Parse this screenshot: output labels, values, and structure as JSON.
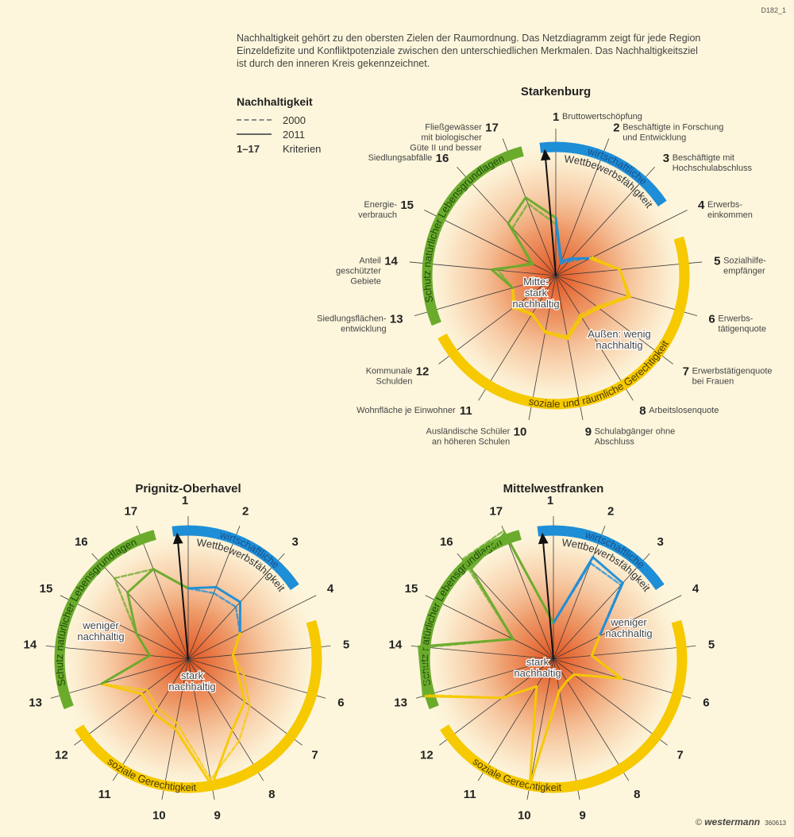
{
  "code": "D182_1",
  "intro": [
    "Nachhaltigkeit gehört zu den obersten Zielen der Raumordnung. Das Netzdiagramm zeigt für jede Region",
    "Einzeldefizite und Konfliktpotenziale zwischen den unterschiedlichen Merkmalen. Das Nachhaltigkeitsziel",
    "ist durch den inneren Kreis gekennzeichnet."
  ],
  "legend": {
    "title": "Nachhaltigkeit",
    "dashed": "2000",
    "solid": "2011",
    "range": "1–17",
    "range_label": "Kriterien"
  },
  "criteria": [
    {
      "num": "1",
      "lines": [
        "Bruttowertschöpfung"
      ]
    },
    {
      "num": "2",
      "lines": [
        "Beschäftigte in Forschung",
        "und Entwicklung"
      ]
    },
    {
      "num": "3",
      "lines": [
        "Beschäftigte mit",
        "Hochschulabschluss"
      ]
    },
    {
      "num": "4",
      "lines": [
        "Erwerbs-",
        "einkommen"
      ]
    },
    {
      "num": "5",
      "lines": [
        "Sozialhilfe-",
        "empfänger"
      ]
    },
    {
      "num": "6",
      "lines": [
        "Erwerbs-",
        "tätigenquote"
      ]
    },
    {
      "num": "7",
      "lines": [
        "Erwerbstätigenquote",
        "bei Frauen"
      ]
    },
    {
      "num": "8",
      "lines": [
        "Arbeitslosenquote"
      ]
    },
    {
      "num": "9",
      "lines": [
        "Schulabgänger ohne",
        "Abschluss"
      ]
    },
    {
      "num": "10",
      "lines": [
        "Ausländische Schüler",
        "an höheren Schulen"
      ]
    },
    {
      "num": "11",
      "lines": [
        "Wohnfläche je Einwohner"
      ]
    },
    {
      "num": "12",
      "lines": [
        "Kommunale",
        "Schulden"
      ]
    },
    {
      "num": "13",
      "lines": [
        "Siedlungsflächen-",
        "entwicklung"
      ]
    },
    {
      "num": "14",
      "lines": [
        "Anteil",
        "geschützter",
        "Gebiete"
      ]
    },
    {
      "num": "15",
      "lines": [
        "Energie-",
        "verbrauch"
      ]
    },
    {
      "num": "16",
      "lines": [
        "Siedlungsabfälle"
      ]
    },
    {
      "num": "17",
      "lines": [
        "Fließgewässer",
        "mit biologischer",
        "Güte II und besser"
      ]
    }
  ],
  "colors": {
    "economy": "#1e8ed6",
    "social": "#f6c900",
    "nature": "#6aab2c",
    "center": "#e0501c",
    "background": "#fdf6dc"
  },
  "chart_data": [
    {
      "type": "radar",
      "title": "Starkenburg",
      "categories": [
        "1",
        "2",
        "3",
        "4",
        "5",
        "6",
        "7",
        "8",
        "9",
        "10",
        "11",
        "12",
        "13",
        "14",
        "15",
        "16",
        "17"
      ],
      "range": [
        0,
        1
      ],
      "groups": {
        "economy": {
          "label": "wirtschaftliche",
          "label2": "Wettbewerbsfähigkeit",
          "axes": [
            1,
            2,
            3
          ]
        },
        "social": {
          "label": "soziale und räumliche Gerechtigkeit",
          "axes": [
            4,
            5,
            6,
            7,
            8,
            9,
            10,
            11,
            12
          ]
        },
        "nature": {
          "label": "Schutz natürlicher Lebensgrundlagen",
          "axes": [
            13,
            14,
            15,
            16,
            17
          ]
        }
      },
      "annotations": {
        "inner": [
          "Mitte:",
          "stark",
          "nachhaltig"
        ],
        "outer": [
          "Außen: wenig",
          "nachhaltig"
        ]
      },
      "series": [
        {
          "name": "2000",
          "style": "dashed",
          "values": [
            0.4,
            0.1,
            0.15,
            0.32,
            0.5,
            0.58,
            0.4,
            0.36,
            0.48,
            0.44,
            0.36,
            0.42,
            0.35,
            0.45,
            0.22,
            0.5,
            0.6
          ]
        },
        {
          "name": "2011",
          "style": "solid",
          "values": [
            0.45,
            0.12,
            0.18,
            0.3,
            0.5,
            0.6,
            0.42,
            0.38,
            0.5,
            0.45,
            0.35,
            0.4,
            0.35,
            0.5,
            0.2,
            0.55,
            0.65
          ]
        }
      ]
    },
    {
      "type": "radar",
      "title": "Prignitz-Oberhavel",
      "categories": [
        "1",
        "2",
        "3",
        "4",
        "5",
        "6",
        "7",
        "8",
        "9",
        "10",
        "11",
        "12",
        "13",
        "14",
        "15",
        "16",
        "17"
      ],
      "range": [
        0,
        1
      ],
      "groups": {
        "economy": {
          "label": "wirtschaftliche",
          "label2": "Wettbewerbsfähigkeit",
          "axes": [
            1,
            2,
            3
          ]
        },
        "social": {
          "label": "soziale Gerechtigkeit",
          "axes": [
            4,
            5,
            6,
            7,
            8,
            9,
            10,
            11,
            12
          ]
        },
        "nature": {
          "label": "Schutz natürlicher Lebensgrundlagen",
          "axes": [
            13,
            14,
            15,
            16,
            17
          ]
        }
      },
      "annotations": {
        "inner": [
          "stark",
          "nachhaltig"
        ],
        "outer": [
          "weniger",
          "nachhaltig"
        ]
      },
      "series": [
        {
          "name": "2000",
          "style": "dashed",
          "values": [
            0.55,
            0.55,
            0.55,
            0.45,
            0.35,
            0.45,
            0.6,
            0.75,
            0.95,
            0.5,
            0.45,
            0.4,
            0.7,
            0.3,
            0.45,
            0.85,
            0.75
          ]
        },
        {
          "name": "2011",
          "style": "solid",
          "values": [
            0.55,
            0.6,
            0.6,
            0.45,
            0.35,
            0.4,
            0.55,
            0.65,
            1.0,
            0.55,
            0.5,
            0.45,
            0.7,
            0.3,
            0.45,
            0.7,
            0.75
          ]
        }
      ]
    },
    {
      "type": "radar",
      "title": "Mittelwestfranken",
      "categories": [
        "1",
        "2",
        "3",
        "4",
        "5",
        "6",
        "7",
        "8",
        "9",
        "10",
        "11",
        "12",
        "13",
        "14",
        "15",
        "16",
        "17"
      ],
      "range": [
        0,
        1
      ],
      "groups": {
        "economy": {
          "label": "wirtschaftliche",
          "label2": "Wettbewerbsfähigkeit",
          "axes": [
            1,
            2,
            3
          ]
        },
        "social": {
          "label": "soziale Gerechtigkeit",
          "axes": [
            4,
            5,
            6,
            7,
            8,
            9,
            10,
            11,
            12
          ]
        },
        "nature": {
          "label": "Schutz natürlicher Lebensgrundlagen",
          "axes": [
            13,
            14,
            15,
            16,
            17
          ]
        }
      },
      "annotations": {
        "inner": [
          "stark",
          "nachhaltig"
        ],
        "outer": [
          "weniger",
          "nachhaltig"
        ]
      },
      "series": [
        {
          "name": "2000",
          "style": "dashed",
          "values": [
            0.28,
            0.8,
            0.78,
            0.4,
            0.3,
            0.55,
            0.2,
            0.2,
            0.25,
            1.0,
            0.25,
            0.5,
            1.02,
            1.0,
            0.35,
            1.05,
            1.07
          ]
        },
        {
          "name": "2011",
          "style": "solid",
          "values": [
            0.28,
            0.85,
            0.8,
            0.4,
            0.3,
            0.55,
            0.2,
            0.2,
            0.25,
            1.0,
            0.25,
            0.5,
            1.05,
            1.05,
            0.35,
            0.95,
            1.05
          ]
        }
      ]
    }
  ],
  "copyright": {
    "symbol": "©",
    "brand": "westermann",
    "id": "360613"
  }
}
